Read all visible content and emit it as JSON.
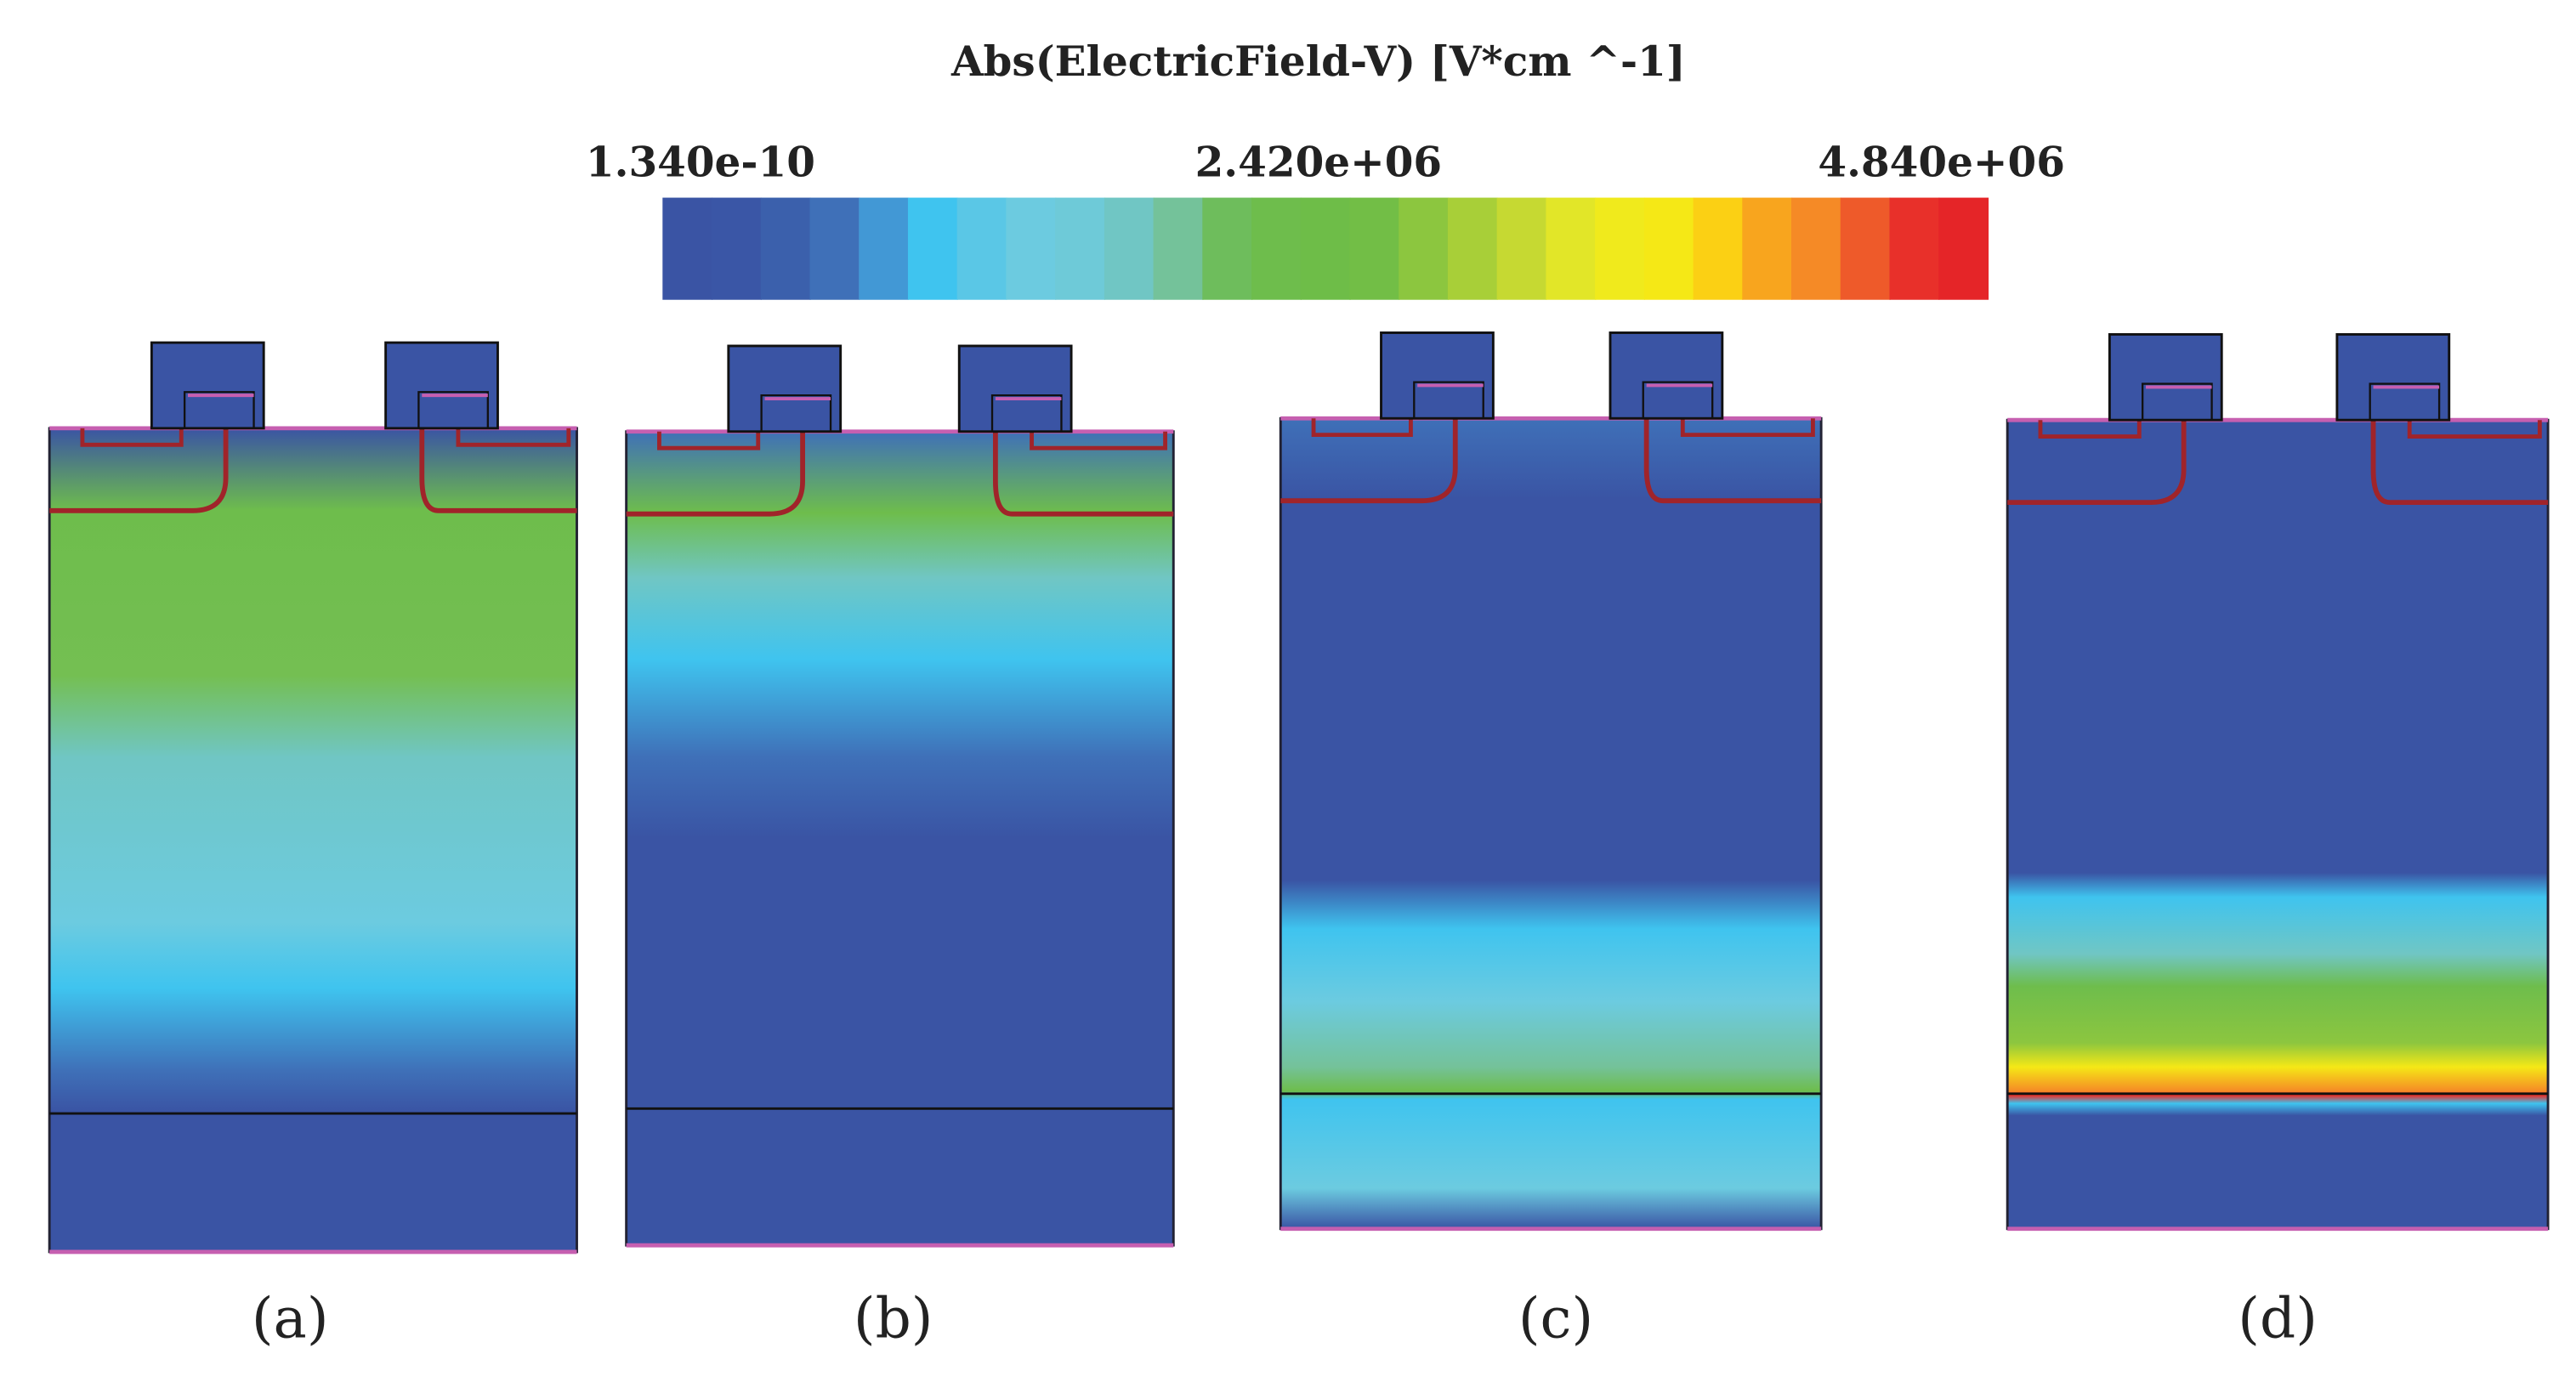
{
  "colorbar": {
    "title": "Abs(ElectricField-V) [V*cm ^-1]",
    "labels": [
      "1.340e-10",
      "2.420e+06",
      "4.840e+06"
    ],
    "colors": [
      "#3a54a4",
      "#3a56a6",
      "#3b60ac",
      "#3f70b8",
      "#4298d5",
      "#3fc4ef",
      "#5ac7e6",
      "#6ccbe0",
      "#6ecad8",
      "#70c6c4",
      "#74c29a",
      "#6ebd5c",
      "#6ebd4c",
      "#6ebd48",
      "#72be46",
      "#8cc63f",
      "#a8cf38",
      "#c6d932",
      "#e2e628",
      "#f0ea1c",
      "#f5e816",
      "#fbd014",
      "#f8a51e",
      "#f58a26",
      "#ee5a2a",
      "#e8302a",
      "#e52528"
    ]
  },
  "panels": [
    {
      "label": "(a)"
    },
    {
      "label": "(b)"
    },
    {
      "label": "(c)"
    },
    {
      "label": "(d)"
    }
  ]
}
